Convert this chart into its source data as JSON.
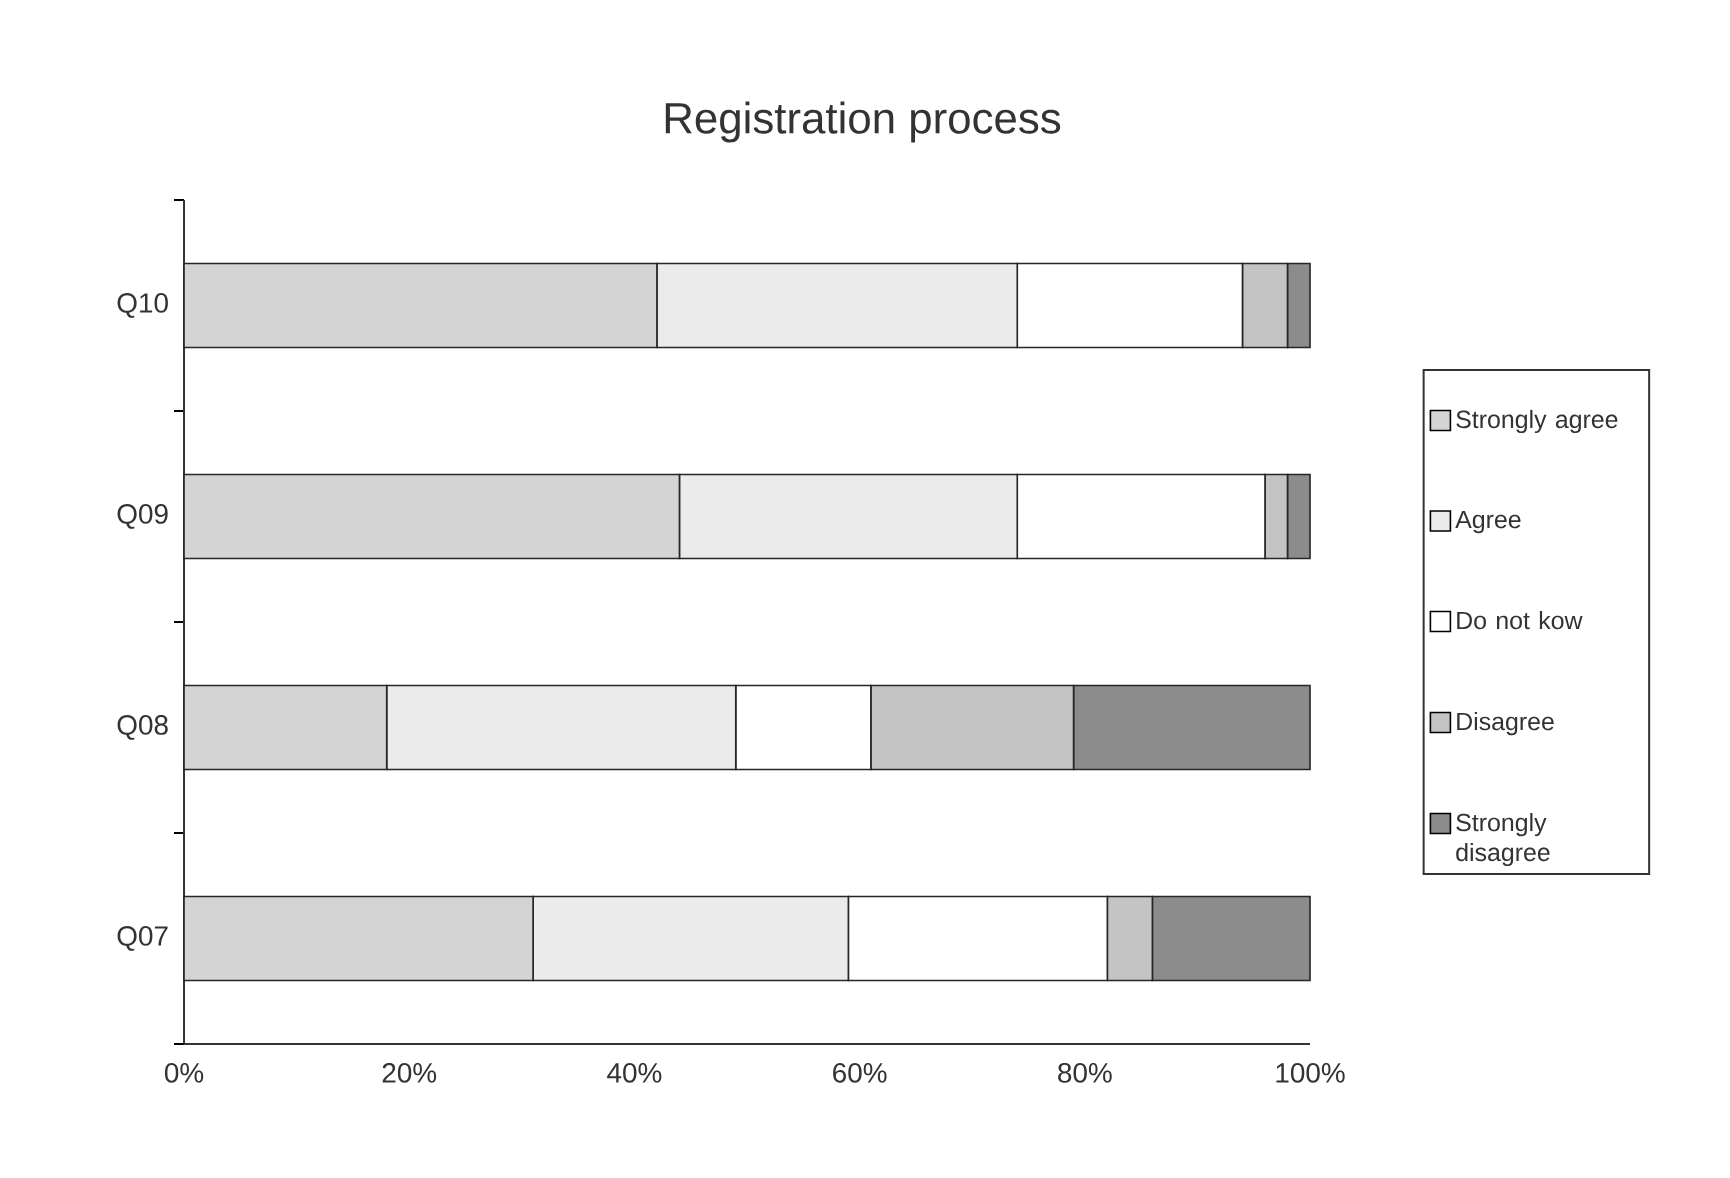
{
  "chart_data": {
    "type": "bar",
    "title": "Registration process",
    "orientation": "horizontal",
    "stacked": true,
    "categories": [
      "Q10",
      "Q09",
      "Q08",
      "Q07"
    ],
    "series": [
      {
        "name": "Strongly agree",
        "color": "#d4d4d4",
        "values": [
          42,
          44,
          18,
          31
        ]
      },
      {
        "name": "Agree",
        "color": "#ebebeb",
        "values": [
          32,
          30,
          31,
          28
        ]
      },
      {
        "name": "Do not kow",
        "color": "#ffffff",
        "values": [
          20,
          22,
          12,
          23
        ]
      },
      {
        "name": "Disagree",
        "color": "#c4c4c4",
        "values": [
          4,
          2,
          18,
          4
        ]
      },
      {
        "name": "Strongly disagree",
        "color": "#8c8c8c",
        "values": [
          2,
          2,
          21,
          14
        ]
      }
    ],
    "xlim": [
      0,
      100
    ],
    "xticks": [
      {
        "value": 0,
        "label": "0%"
      },
      {
        "value": 20,
        "label": "20%"
      },
      {
        "value": 40,
        "label": "40%"
      },
      {
        "value": 60,
        "label": "60%"
      },
      {
        "value": 80,
        "label": "80%"
      },
      {
        "value": 100,
        "label": "100%"
      }
    ],
    "grid": false,
    "legend": "right"
  }
}
